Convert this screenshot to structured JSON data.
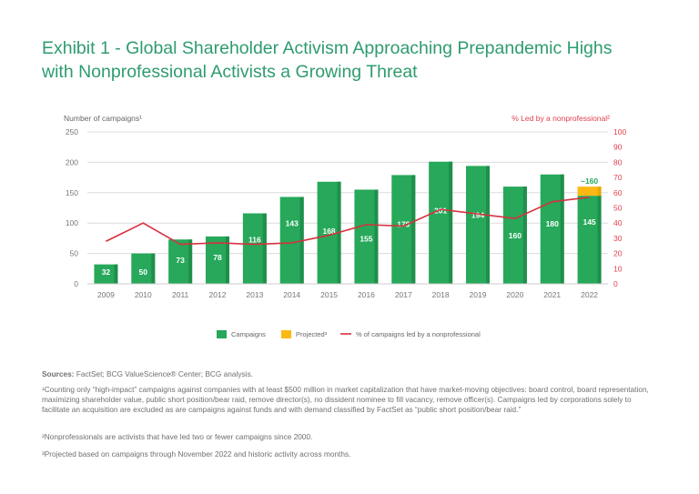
{
  "title_line1": "Exhibit 1 - Global Shareholder Activism Approaching Prepandemic Highs",
  "title_line2": "with Nonprofessional Activists a Growing Threat",
  "chart_data": {
    "type": "bar",
    "categories": [
      "2009",
      "2010",
      "2011",
      "2012",
      "2013",
      "2014",
      "2015",
      "2016",
      "2017",
      "2018",
      "2019",
      "2020",
      "2021",
      "2022"
    ],
    "series": [
      {
        "name": "Campaigns",
        "type": "bar",
        "color": "#27a85a",
        "values": [
          32,
          50,
          73,
          78,
          116,
          143,
          168,
          155,
          179,
          201,
          194,
          160,
          180,
          145
        ]
      },
      {
        "name": "Projected³",
        "type": "bar-stacked",
        "color": "#fdb913",
        "values": [
          0,
          0,
          0,
          0,
          0,
          0,
          0,
          0,
          0,
          0,
          0,
          0,
          0,
          15
        ],
        "label_2022": "~160"
      },
      {
        "name": "% of campaigns led by a nonprofessional",
        "type": "line",
        "axis": "right",
        "color": "#d6313f",
        "values": [
          28,
          40,
          26,
          27,
          26,
          27,
          32,
          39,
          38,
          49,
          46,
          43,
          54,
          57
        ]
      }
    ],
    "ylabel": "Number of  campaigns¹",
    "ylabel_right": "% Led by a nonprofessional²",
    "ylim": [
      0,
      250
    ],
    "yticks": [
      "0",
      "50",
      "100",
      "150",
      "200",
      "250"
    ],
    "ylim_right": [
      0,
      100
    ],
    "yticks_right": [
      "0",
      "10",
      "20",
      "30",
      "40",
      "50",
      "60",
      "70",
      "80",
      "90",
      "100"
    ],
    "grid": true,
    "legend": "bottom-center"
  },
  "notes": {
    "sources_label": "Sources:",
    "sources_text": " FactSet; BCG ValueScience® Center; BCG analysis.",
    "fn1": "¹Counting only “high-impact” campaigns against companies with at least $500 million in market capitalization that have market-moving objectives: board control, board representation, maximizing shareholder value, public short position/bear raid, remove director(s), no dissident nominee to fill vacancy, remove officer(s). Campaigns led by corporations solely to facilitate an acquisition are excluded as are campaigns against funds and with demand classified by FactSet as “public short position/bear raid.”",
    "fn2": "²Nonprofessionals are activists that have led two or fewer campaigns since 2000.",
    "fn3": "³Projected based on campaigns through November 2022 and historic activity across months."
  }
}
